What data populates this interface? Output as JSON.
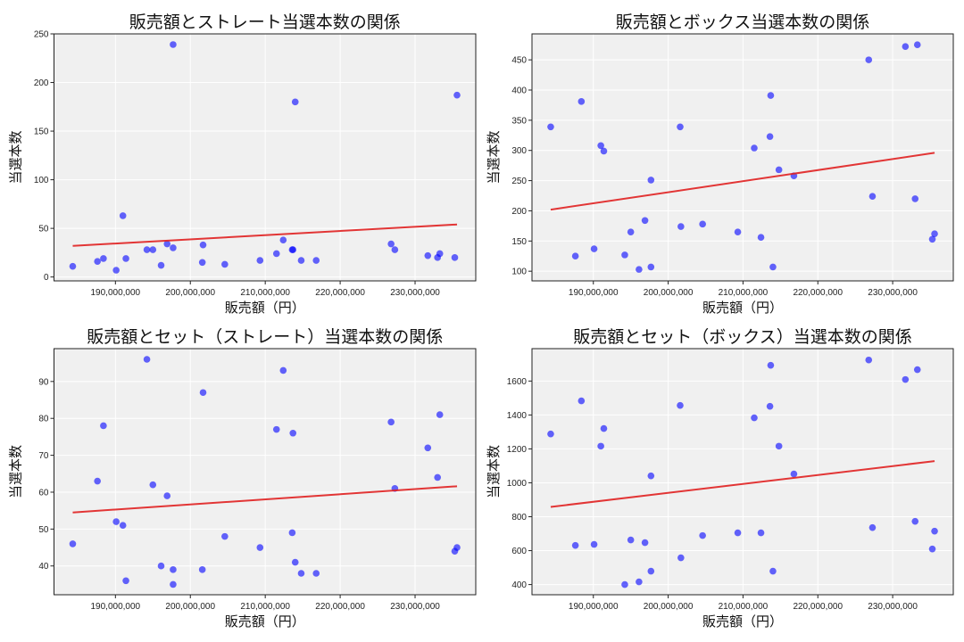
{
  "colors": {
    "points": "#0000ff",
    "trendline": "#e02020",
    "plot_bg": "#f0f0f0",
    "grid": "#ffffff"
  },
  "chart_data": [
    {
      "type": "scatter",
      "title": "販売額とストレート当選本数の関係",
      "xlabel": "販売額（円）",
      "ylabel": "当選本数",
      "xlim": [
        181800000,
        238100000
      ],
      "ylim": [
        -4,
        250
      ],
      "xticks": [
        190000000,
        200000000,
        210000000,
        220000000,
        230000000
      ],
      "xtick_labels": [
        "190,000,000",
        "200,000,000",
        "210,000,000",
        "220,000,000",
        "230,000,000"
      ],
      "yticks": [
        0,
        50,
        100,
        150,
        200,
        250
      ],
      "ytick_labels": [
        "0",
        "50",
        "100",
        "150",
        "200",
        "250"
      ],
      "grid": true,
      "x": [
        184300000,
        187600000,
        188400000,
        190100000,
        191000000,
        191400000,
        194200000,
        195000000,
        196100000,
        196900000,
        197700000,
        197700000,
        201600000,
        201700000,
        204600000,
        209300000,
        211500000,
        212400000,
        213600000,
        213700000,
        214000000,
        214800000,
        216800000,
        226800000,
        227300000,
        231700000,
        233000000,
        233300000,
        235300000,
        235600000
      ],
      "y": [
        11,
        16,
        19,
        7,
        63,
        19,
        28,
        28,
        12,
        34,
        239,
        30,
        15,
        33,
        13,
        17,
        24,
        38,
        28,
        28,
        180,
        17,
        17,
        34,
        28,
        22,
        20,
        24,
        20,
        187
      ],
      "trendline": {
        "x": [
          184300000,
          235600000
        ],
        "y": [
          32,
          54
        ]
      }
    },
    {
      "type": "scatter",
      "title": "販売額とボックス当選本数の関係",
      "xlabel": "販売額（円）",
      "ylabel": "当選本数",
      "xlim": [
        181800000,
        238100000
      ],
      "ylim": [
        84,
        493
      ],
      "xticks": [
        190000000,
        200000000,
        210000000,
        220000000,
        230000000
      ],
      "xtick_labels": [
        "190,000,000",
        "200,000,000",
        "210,000,000",
        "220,000,000",
        "230,000,000"
      ],
      "yticks": [
        100,
        150,
        200,
        250,
        300,
        350,
        400,
        450
      ],
      "ytick_labels": [
        "100",
        "150",
        "200",
        "250",
        "300",
        "350",
        "400",
        "450"
      ],
      "grid": true,
      "x": [
        184300000,
        187600000,
        188400000,
        190100000,
        191000000,
        191400000,
        194200000,
        195000000,
        196100000,
        196900000,
        197700000,
        197700000,
        201600000,
        201700000,
        204600000,
        209300000,
        211500000,
        212400000,
        213600000,
        213700000,
        214000000,
        214800000,
        216800000,
        226800000,
        227300000,
        231700000,
        233000000,
        233300000,
        235300000,
        235600000
      ],
      "y": [
        339,
        125,
        381,
        137,
        308,
        299,
        127,
        165,
        103,
        184,
        251,
        107,
        339,
        174,
        178,
        165,
        304,
        156,
        323,
        391,
        107,
        268,
        258,
        450,
        224,
        472,
        220,
        475,
        153,
        162
      ],
      "trendline": {
        "x": [
          184300000,
          235600000
        ],
        "y": [
          202,
          296
        ]
      }
    },
    {
      "type": "scatter",
      "title": "販売額とセット（ストレート）当選本数の関係",
      "xlabel": "販売額（円）",
      "ylabel": "当選本数",
      "xlim": [
        181800000,
        238100000
      ],
      "ylim": [
        32.2,
        98.9
      ],
      "xticks": [
        190000000,
        200000000,
        210000000,
        220000000,
        230000000
      ],
      "xtick_labels": [
        "190,000,000",
        "200,000,000",
        "210,000,000",
        "220,000,000",
        "230,000,000"
      ],
      "yticks": [
        40,
        50,
        60,
        70,
        80,
        90
      ],
      "ytick_labels": [
        "40",
        "50",
        "60",
        "70",
        "80",
        "90"
      ],
      "grid": true,
      "x": [
        184300000,
        187600000,
        188400000,
        190100000,
        191000000,
        191400000,
        194200000,
        195000000,
        196100000,
        196900000,
        197700000,
        197700000,
        201600000,
        201700000,
        204600000,
        209300000,
        211500000,
        212400000,
        213600000,
        213700000,
        214000000,
        214800000,
        216800000,
        226800000,
        227300000,
        231700000,
        233000000,
        233300000,
        235300000,
        235600000
      ],
      "y": [
        46,
        63,
        78,
        52,
        51,
        36,
        96,
        62,
        40,
        59,
        39,
        35,
        39,
        87,
        48,
        45,
        77,
        93,
        49,
        76,
        41,
        38,
        38,
        79,
        61,
        72,
        64,
        81,
        44,
        45
      ],
      "trendline": {
        "x": [
          184300000,
          235600000
        ],
        "y": [
          54.5,
          61.6
        ]
      }
    },
    {
      "type": "scatter",
      "title": "販売額とセット（ボックス）当選本数の関係",
      "xlabel": "販売額（円）",
      "ylabel": "当選本数",
      "xlim": [
        181800000,
        238100000
      ],
      "ylim": [
        340,
        1791
      ],
      "xticks": [
        190000000,
        200000000,
        210000000,
        220000000,
        230000000
      ],
      "xtick_labels": [
        "190,000,000",
        "200,000,000",
        "210,000,000",
        "220,000,000",
        "230,000,000"
      ],
      "yticks": [
        400,
        600,
        800,
        1000,
        1200,
        1400,
        1600
      ],
      "ytick_labels": [
        "400",
        "600",
        "800",
        "1000",
        "1200",
        "1400",
        "1600"
      ],
      "grid": true,
      "x": [
        184300000,
        187600000,
        188400000,
        190100000,
        191000000,
        191400000,
        194200000,
        195000000,
        196100000,
        196900000,
        197700000,
        197700000,
        201600000,
        201700000,
        204600000,
        209300000,
        211500000,
        212400000,
        213600000,
        213700000,
        214000000,
        214800000,
        216800000,
        226800000,
        227300000,
        231700000,
        233000000,
        233300000,
        235300000,
        235600000
      ],
      "y": [
        1288,
        631,
        1483,
        637,
        1216,
        1320,
        400,
        663,
        416,
        647,
        1041,
        479,
        1456,
        558,
        689,
        705,
        1383,
        705,
        1451,
        1693,
        479,
        1216,
        1052,
        1724,
        736,
        1609,
        773,
        1667,
        610,
        715
      ],
      "trendline": {
        "x": [
          184300000,
          235600000
        ],
        "y": [
          858,
          1128
        ]
      }
    }
  ]
}
